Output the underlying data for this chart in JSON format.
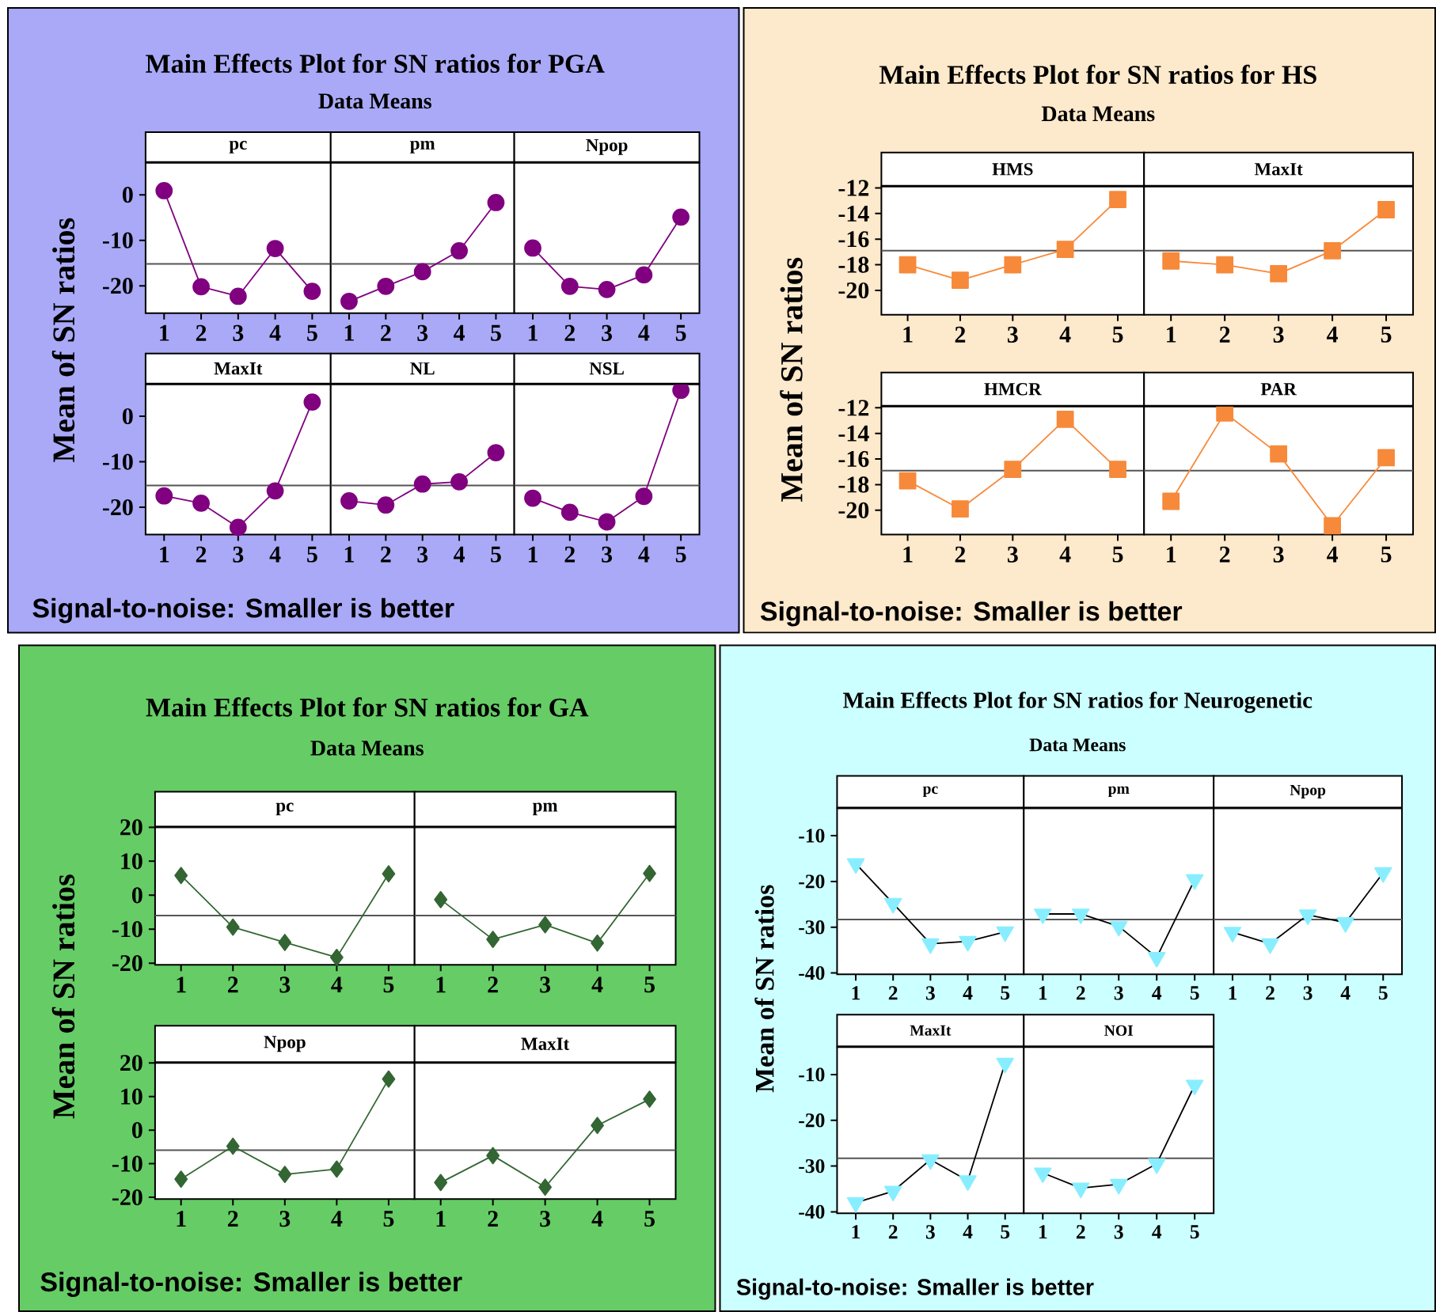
{
  "chart_data": [
    {
      "type": "other",
      "title": "Main Effects Plot for SN ratios for PGA",
      "subtitle": "Data Means",
      "ylabel": "Mean of SN ratios",
      "annotations": [
        "Signal-to-noise: Smaller is better"
      ]
    },
    {
      "type": "line",
      "title": "pc",
      "categories": [
        "1",
        "2",
        "3",
        "4",
        "5"
      ],
      "series": [
        {
          "color": "#800080",
          "values": [
            0.9,
            -20.2,
            -22.3,
            -11.8,
            -21.2
          ]
        }
      ],
      "ylim": [
        -26,
        7
      ],
      "yticks": [
        -20,
        -10,
        0
      ],
      "ref_lines": [
        {
          "axis": "y",
          "value": -15.2,
          "color": "#555555"
        }
      ],
      "marker": "circle",
      "tick_labels": true
    },
    {
      "type": "line",
      "title": "pm",
      "categories": [
        "1",
        "2",
        "3",
        "4",
        "5"
      ],
      "series": [
        {
          "color": "#800080",
          "values": [
            -23.4,
            -20.1,
            -16.9,
            -12.3,
            -1.7
          ]
        }
      ],
      "ylim": [
        -26,
        7
      ],
      "ref_lines": [
        {
          "axis": "y",
          "value": -15.2,
          "color": "#555555"
        }
      ],
      "marker": "circle",
      "tick_labels": "x"
    },
    {
      "type": "line",
      "title": "Npop",
      "categories": [
        "1",
        "2",
        "3",
        "4",
        "5"
      ],
      "series": [
        {
          "color": "#800080",
          "values": [
            -11.7,
            -20.1,
            -20.8,
            -17.6,
            -4.9
          ]
        }
      ],
      "ylim": [
        -26,
        7
      ],
      "ref_lines": [
        {
          "axis": "y",
          "value": -15.2,
          "color": "#555555"
        }
      ],
      "marker": "circle",
      "tick_labels": "x"
    },
    {
      "type": "line",
      "title": "MaxIt",
      "categories": [
        "1",
        "2",
        "3",
        "4",
        "5"
      ],
      "series": [
        {
          "color": "#800080",
          "values": [
            -17.5,
            -19.1,
            -24.4,
            -16.4,
            3.1
          ]
        }
      ],
      "ylim": [
        -26,
        7
      ],
      "yticks": [
        -20,
        -10,
        0
      ],
      "ref_lines": [
        {
          "axis": "y",
          "value": -15.2,
          "color": "#555555"
        }
      ],
      "marker": "circle",
      "tick_labels": true
    },
    {
      "type": "line",
      "title": "NL",
      "categories": [
        "1",
        "2",
        "3",
        "4",
        "5"
      ],
      "series": [
        {
          "color": "#800080",
          "values": [
            -18.6,
            -19.5,
            -14.9,
            -14.4,
            -8.0
          ]
        }
      ],
      "ylim": [
        -26,
        7
      ],
      "ref_lines": [
        {
          "axis": "y",
          "value": -15.2,
          "color": "#555555"
        }
      ],
      "marker": "circle",
      "tick_labels": "x"
    },
    {
      "type": "line",
      "title": "NSL",
      "categories": [
        "1",
        "2",
        "3",
        "4",
        "5"
      ],
      "series": [
        {
          "color": "#800080",
          "values": [
            -18.0,
            -21.1,
            -23.2,
            -17.6,
            5.7
          ]
        }
      ],
      "ylim": [
        -26,
        7
      ],
      "ref_lines": [
        {
          "axis": "y",
          "value": -15.2,
          "color": "#555555"
        }
      ],
      "marker": "circle",
      "tick_labels": "x"
    },
    {
      "type": "other",
      "title": "Main Effects Plot for SN ratios for HS",
      "subtitle": "Data Means",
      "ylabel": "Mean of SN ratios",
      "annotations": [
        "Signal-to-noise: Smaller is better"
      ]
    },
    {
      "type": "line",
      "title": "HMS",
      "categories": [
        "1",
        "2",
        "3",
        "4",
        "5"
      ],
      "series": [
        {
          "color": "#F7893A",
          "values": [
            -18.0,
            -19.2,
            -18.0,
            -16.8,
            -12.9
          ]
        }
      ],
      "ylim": [
        -21.9,
        -11.9
      ],
      "yticks": [
        -20,
        -18,
        -16,
        -14,
        -12
      ],
      "ref_lines": [
        {
          "axis": "y",
          "value": -16.9,
          "color": "#555555"
        }
      ],
      "marker": "square",
      "tick_labels": true
    },
    {
      "type": "line",
      "title": "MaxIt",
      "categories": [
        "1",
        "2",
        "3",
        "4",
        "5"
      ],
      "series": [
        {
          "color": "#F7893A",
          "values": [
            -17.7,
            -18.0,
            -18.7,
            -16.9,
            -13.7
          ]
        }
      ],
      "ylim": [
        -21.9,
        -11.9
      ],
      "ref_lines": [
        {
          "axis": "y",
          "value": -16.9,
          "color": "#555555"
        }
      ],
      "marker": "square",
      "tick_labels": "x"
    },
    {
      "type": "line",
      "title": "HMCR",
      "categories": [
        "1",
        "2",
        "3",
        "4",
        "5"
      ],
      "series": [
        {
          "color": "#F7893A",
          "values": [
            -17.7,
            -19.9,
            -16.8,
            -12.9,
            -16.8
          ]
        }
      ],
      "ylim": [
        -21.9,
        -11.9
      ],
      "yticks": [
        -20,
        -18,
        -16,
        -14,
        -12
      ],
      "ref_lines": [
        {
          "axis": "y",
          "value": -16.9,
          "color": "#555555"
        }
      ],
      "marker": "square",
      "tick_labels": true
    },
    {
      "type": "line",
      "title": "PAR",
      "categories": [
        "1",
        "2",
        "3",
        "4",
        "5"
      ],
      "series": [
        {
          "color": "#F7893A",
          "values": [
            -19.3,
            -12.4,
            -15.6,
            -21.2,
            -15.9
          ]
        }
      ],
      "ylim": [
        -21.9,
        -11.9
      ],
      "ref_lines": [
        {
          "axis": "y",
          "value": -16.9,
          "color": "#555555"
        }
      ],
      "marker": "square",
      "tick_labels": "x"
    },
    {
      "type": "other",
      "title": "Main Effects Plot for SN ratios for GA",
      "subtitle": "Data Means",
      "ylabel": "Mean of SN ratios",
      "annotations": [
        "Signal-to-noise: Smaller is better"
      ]
    },
    {
      "type": "line",
      "title": "pc",
      "categories": [
        "1",
        "2",
        "3",
        "4",
        "5"
      ],
      "series": [
        {
          "color": "#336633",
          "values": [
            5.8,
            -9.4,
            -13.9,
            -18.3,
            6.3
          ]
        }
      ],
      "ylim": [
        -20.5,
        20
      ],
      "yticks": [
        -20,
        -10,
        0,
        10,
        20
      ],
      "ref_lines": [
        {
          "axis": "y",
          "value": -6,
          "color": "#555555"
        }
      ],
      "marker": "diamond",
      "tick_labels": true
    },
    {
      "type": "line",
      "title": "pm",
      "categories": [
        "1",
        "2",
        "3",
        "4",
        "5"
      ],
      "series": [
        {
          "color": "#336633",
          "values": [
            -1.3,
            -13.0,
            -8.7,
            -14.1,
            6.4
          ]
        }
      ],
      "ylim": [
        -20.5,
        20
      ],
      "ref_lines": [
        {
          "axis": "y",
          "value": -6,
          "color": "#555555"
        }
      ],
      "marker": "diamond",
      "tick_labels": "x"
    },
    {
      "type": "line",
      "title": "Npop",
      "categories": [
        "1",
        "2",
        "3",
        "4",
        "5"
      ],
      "series": [
        {
          "color": "#336633",
          "values": [
            -14.6,
            -4.8,
            -13.2,
            -11.6,
            15.2
          ]
        }
      ],
      "ylim": [
        -20.5,
        20
      ],
      "yticks": [
        -20,
        -10,
        0,
        10,
        20
      ],
      "ref_lines": [
        {
          "axis": "y",
          "value": -6,
          "color": "#555555"
        }
      ],
      "marker": "diamond",
      "tick_labels": true
    },
    {
      "type": "line",
      "title": "MaxIt",
      "categories": [
        "1",
        "2",
        "3",
        "4",
        "5"
      ],
      "series": [
        {
          "color": "#336633",
          "values": [
            -15.6,
            -7.6,
            -17.0,
            1.4,
            9.2
          ]
        }
      ],
      "ylim": [
        -20.5,
        20
      ],
      "ref_lines": [
        {
          "axis": "y",
          "value": -6,
          "color": "#555555"
        }
      ],
      "marker": "diamond",
      "tick_labels": "x"
    },
    {
      "type": "other",
      "title": "Main Effects Plot for SN ratios for Neurogenetic",
      "subtitle": "Data Means",
      "ylabel": "Mean of SN ratios",
      "annotations": [
        "Signal-to-noise: Smaller is better"
      ]
    },
    {
      "type": "line",
      "title": "pc",
      "categories": [
        "1",
        "2",
        "3",
        "4",
        "5"
      ],
      "series": [
        {
          "color": "#000000",
          "values": [
            -16.1,
            -24.8,
            -33.6,
            -33.1,
            -31.0
          ]
        }
      ],
      "ylim": [
        -40.3,
        -4
      ],
      "yticks": [
        -40,
        -30,
        -20,
        -10
      ],
      "ref_lines": [
        {
          "axis": "y",
          "value": -28.3,
          "color": "#555555"
        }
      ],
      "marker": "triangle",
      "tick_labels": true
    },
    {
      "type": "line",
      "title": "pm",
      "categories": [
        "1",
        "2",
        "3",
        "4",
        "5"
      ],
      "series": [
        {
          "color": "#000000",
          "values": [
            -27.1,
            -27.1,
            -29.8,
            -36.6,
            -19.6
          ]
        }
      ],
      "ylim": [
        -40.3,
        -4
      ],
      "ref_lines": [
        {
          "axis": "y",
          "value": -28.3,
          "color": "#555555"
        }
      ],
      "marker": "triangle",
      "tick_labels": "x"
    },
    {
      "type": "line",
      "title": "Npop",
      "categories": [
        "1",
        "2",
        "3",
        "4",
        "5"
      ],
      "series": [
        {
          "color": "#000000",
          "values": [
            -31.1,
            -33.6,
            -27.3,
            -29.0,
            -18.1
          ]
        }
      ],
      "ylim": [
        -40.3,
        -4
      ],
      "ref_lines": [
        {
          "axis": "y",
          "value": -28.3,
          "color": "#555555"
        }
      ],
      "marker": "triangle",
      "tick_labels": "x"
    },
    {
      "type": "line",
      "title": "MaxIt",
      "categories": [
        "1",
        "2",
        "3",
        "4",
        "5"
      ],
      "series": [
        {
          "color": "#000000",
          "values": [
            -38.0,
            -35.5,
            -28.6,
            -33.2,
            -7.5
          ]
        }
      ],
      "ylim": [
        -40.3,
        -4
      ],
      "yticks": [
        -40,
        -30,
        -20,
        -10
      ],
      "ref_lines": [
        {
          "axis": "y",
          "value": -28.3,
          "color": "#555555"
        }
      ],
      "marker": "triangle",
      "tick_labels": true
    },
    {
      "type": "line",
      "title": "NOI",
      "categories": [
        "1",
        "2",
        "3",
        "4",
        "5"
      ],
      "series": [
        {
          "color": "#000000",
          "values": [
            -31.5,
            -34.8,
            -34.0,
            -29.5,
            -12.3
          ]
        }
      ],
      "ylim": [
        -40.3,
        -4
      ],
      "ref_lines": [
        {
          "axis": "y",
          "value": -28.3,
          "color": "#555555"
        }
      ],
      "marker": "triangle",
      "tick_labels": "x"
    }
  ]
}
